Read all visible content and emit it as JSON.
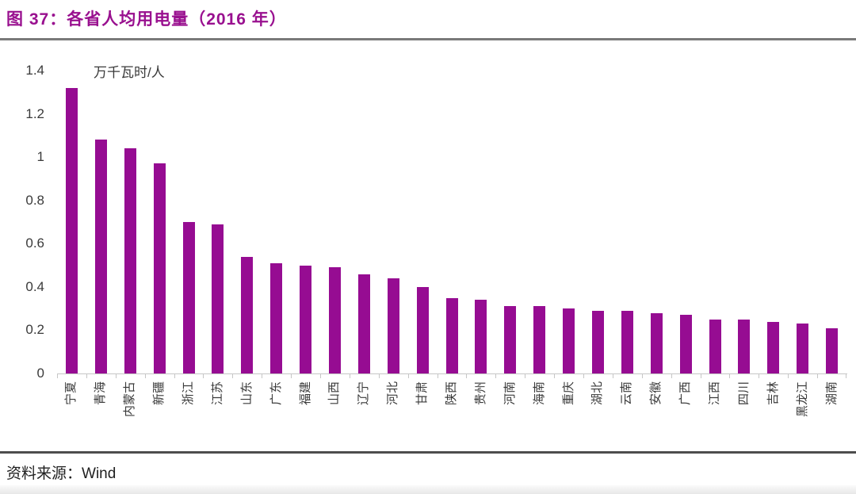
{
  "figure": {
    "title": "图 37：各省人均用电量（2016 年）",
    "source_prefix": "资料来源：",
    "source_name": "Wind"
  },
  "colors": {
    "title": "#99108F",
    "bar": "#960C92",
    "axis": "#C6C6C6",
    "text": "#3A3A3A"
  },
  "chart_data": {
    "type": "bar",
    "title": "各省人均用电量（2016 年）",
    "unit_label": "万千瓦时/人",
    "xlabel": "",
    "ylabel": "万千瓦时/人",
    "ylim": [
      0,
      1.4
    ],
    "yticks": [
      0,
      0.2,
      0.4,
      0.6,
      0.8,
      1,
      1.2,
      1.4
    ],
    "ytick_labels": [
      "0",
      "0.2",
      "0.4",
      "0.6",
      "0.8",
      "1",
      "1.2",
      "1.4"
    ],
    "grid": false,
    "legend_position": "none",
    "categories": [
      "宁夏",
      "青海",
      "内蒙古",
      "新疆",
      "浙江",
      "江苏",
      "山东",
      "广东",
      "福建",
      "山西",
      "辽宁",
      "河北",
      "甘肃",
      "陕西",
      "贵州",
      "河南",
      "海南",
      "重庆",
      "湖北",
      "云南",
      "安徽",
      "广西",
      "江西",
      "四川",
      "吉林",
      "黑龙江",
      "湖南"
    ],
    "values": [
      1.32,
      1.08,
      1.04,
      0.97,
      0.7,
      0.69,
      0.54,
      0.51,
      0.5,
      0.49,
      0.46,
      0.44,
      0.4,
      0.35,
      0.34,
      0.31,
      0.31,
      0.3,
      0.29,
      0.29,
      0.28,
      0.27,
      0.25,
      0.25,
      0.24,
      0.23,
      0.21
    ]
  }
}
